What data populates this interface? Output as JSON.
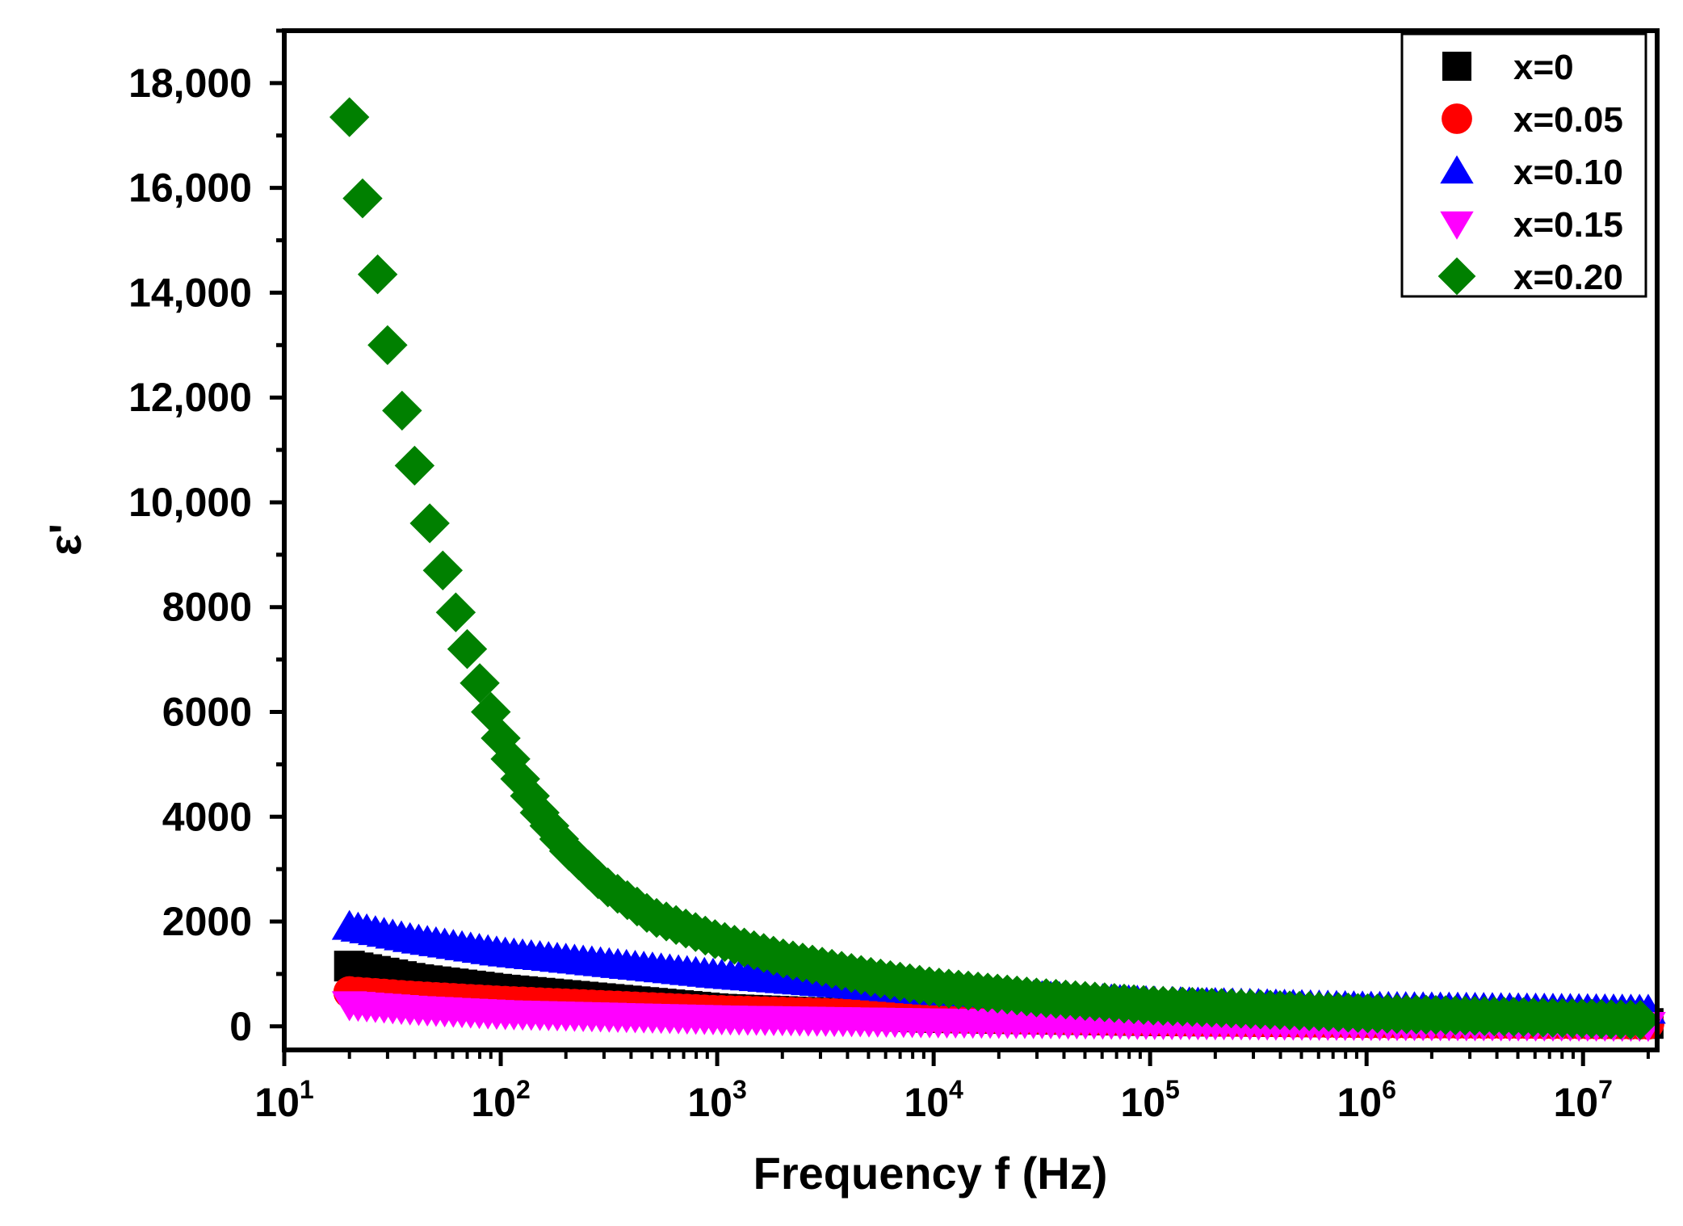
{
  "chart_data": {
    "type": "scatter",
    "title": "",
    "xlabel": "Frequency f (Hz)",
    "ylabel": "ε'",
    "xscale": "log",
    "xlim": [
      10,
      22000000
    ],
    "ylim": [
      -450,
      19000
    ],
    "x_ticks": [
      {
        "value": 10,
        "base": "10",
        "exp": "1"
      },
      {
        "value": 100,
        "base": "10",
        "exp": "2"
      },
      {
        "value": 1000,
        "base": "10",
        "exp": "3"
      },
      {
        "value": 10000,
        "base": "10",
        "exp": "4"
      },
      {
        "value": 100000,
        "base": "10",
        "exp": "5"
      },
      {
        "value": 1000000,
        "base": "10",
        "exp": "6"
      },
      {
        "value": 10000000,
        "base": "10",
        "exp": "7"
      }
    ],
    "y_ticks": [
      {
        "value": 0,
        "label": "0"
      },
      {
        "value": 2000,
        "label": "2000"
      },
      {
        "value": 4000,
        "label": "4000"
      },
      {
        "value": 6000,
        "label": "6000"
      },
      {
        "value": 8000,
        "label": "8000"
      },
      {
        "value": 10000,
        "label": "10,000"
      },
      {
        "value": 12000,
        "label": "12,000"
      },
      {
        "value": 14000,
        "label": "14,000"
      },
      {
        "value": 16000,
        "label": "16,000"
      },
      {
        "value": 18000,
        "label": "18,000"
      }
    ],
    "legend_position": "top-right",
    "series": [
      {
        "name": "x=0",
        "marker": "square",
        "color": "#000000",
        "x": [
          20,
          40,
          100,
          1000,
          10000,
          100000,
          1000000,
          20000000
        ],
        "y": [
          1150,
          900,
          700,
          330,
          170,
          110,
          80,
          55
        ]
      },
      {
        "name": "x=0.05",
        "marker": "circle",
        "color": "#ff0000",
        "x": [
          20,
          40,
          100,
          1000,
          10000,
          100000,
          1000000,
          20000000
        ],
        "y": [
          650,
          560,
          470,
          290,
          180,
          120,
          80,
          55
        ]
      },
      {
        "name": "x=0.10",
        "marker": "triangle-up",
        "color": "#0000ff",
        "x": [
          20,
          40,
          100,
          1000,
          10000,
          100000,
          1000000,
          20000000
        ],
        "y": [
          1900,
          1650,
          1400,
          980,
          660,
          460,
          360,
          300
        ]
      },
      {
        "name": "x=0.15",
        "marker": "triangle-down",
        "color": "#ff00ff",
        "x": [
          20,
          40,
          100,
          1000,
          10000,
          100000,
          1000000,
          20000000
        ],
        "y": [
          420,
          330,
          250,
          150,
          90,
          60,
          40,
          25
        ]
      },
      {
        "name": "x=0.20",
        "marker": "diamond",
        "color": "#008000",
        "x": [
          20,
          23,
          27,
          30,
          35,
          40,
          47,
          54,
          62,
          70,
          80,
          90,
          100,
          120,
          150,
          200,
          300,
          500,
          1000,
          2000,
          5000,
          10000,
          30000,
          100000,
          1000000,
          20000000
        ],
        "y": [
          17350,
          15800,
          14350,
          13000,
          11750,
          10700,
          9600,
          8700,
          7900,
          7200,
          6550,
          6000,
          5500,
          4800,
          4100,
          3400,
          2700,
          2100,
          1650,
          1300,
          950,
          750,
          550,
          400,
          250,
          120
        ]
      }
    ]
  }
}
